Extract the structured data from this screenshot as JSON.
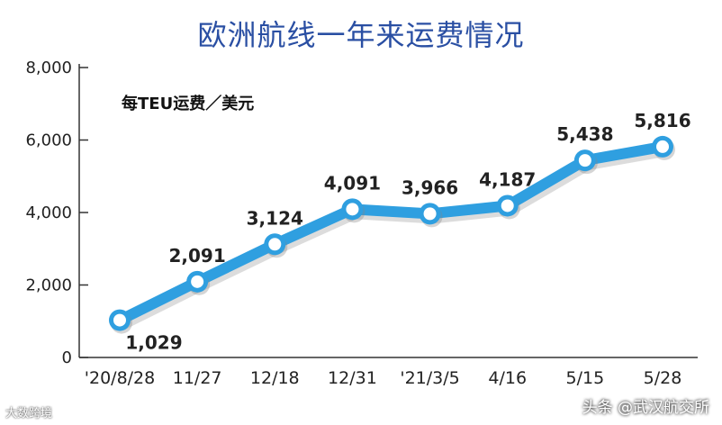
{
  "header": {
    "title": "欧洲航线一年来运费情况",
    "unit_label": "每TEU运费／美元"
  },
  "watermarks": {
    "left": "大数跨境",
    "right": "头条 @武汉航交所"
  },
  "colors": {
    "title": "#2a4fa3",
    "line": "#2f9fe0",
    "line_light": "#7ccaf4",
    "marker_fill": "#ffffff",
    "axis": "#333333"
  },
  "chart_data": {
    "type": "line",
    "title": "欧洲航线一年来运费情况",
    "ylabel": "每TEU运费／美元",
    "xlabel": "",
    "categories": [
      "'20/8/28",
      "11/27",
      "12/18",
      "12/31",
      "'21/3/5",
      "4/16",
      "5/15",
      "5/28"
    ],
    "series": [
      {
        "values": [
          1029,
          2091,
          3124,
          4091,
          3966,
          4187,
          5438,
          5816
        ]
      }
    ],
    "data_labels": [
      "1,029",
      "2,091",
      "3,124",
      "4,091",
      "3,966",
      "4,187",
      "5,438",
      "5,816"
    ],
    "ylim": [
      0,
      8000
    ],
    "yticks": [
      0,
      2000,
      4000,
      6000,
      8000
    ],
    "ytick_labels": [
      "0",
      "2,000",
      "4,000",
      "6,000",
      "8,000"
    ],
    "grid": false,
    "legend": "none"
  }
}
